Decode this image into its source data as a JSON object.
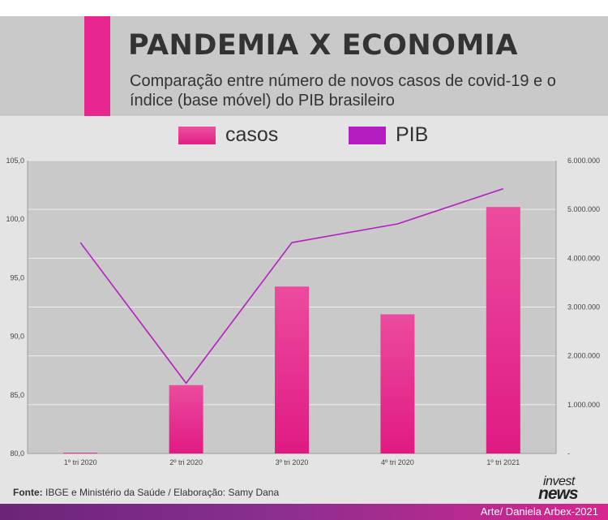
{
  "header": {
    "title": "PANDEMIA X ECONOMIA",
    "subtitle": "Comparação entre número de novos casos de covid-19 e o índice (base móvel) do PIB brasileiro"
  },
  "legend": {
    "casos": "casos",
    "pib": "PIB"
  },
  "colors": {
    "casos": "#e8268f",
    "pib": "#b51dc2",
    "accent": "#e8268f",
    "plot_background": "#c9c9c9"
  },
  "chart_data": {
    "type": "bar",
    "categories": [
      "1º tri 2020",
      "2º tri 2020",
      "3º tri 2020",
      "4º tri 2020",
      "1º tri 2021"
    ],
    "series": [
      {
        "name": "casos",
        "type": "bar",
        "axis": "right",
        "values": [
          12000,
          1400000,
          3420000,
          2850000,
          5050000
        ]
      },
      {
        "name": "PIB",
        "type": "line",
        "axis": "left",
        "values": [
          98.0,
          86.0,
          98.0,
          99.6,
          102.6
        ]
      }
    ],
    "left_axis": {
      "ylim": [
        80,
        105
      ],
      "ticks": [
        "80,0",
        "85,0",
        "90,0",
        "95,0",
        "100,0",
        "105,0"
      ]
    },
    "right_axis": {
      "ylim": [
        0,
        6000000
      ],
      "ticks": [
        "-",
        "1.000.000",
        "2.000.000",
        "3.000.000",
        "4.000.000",
        "5.000.000",
        "6.000.000"
      ]
    },
    "grid": true
  },
  "source": {
    "label": "Fonte:",
    "text": "IBGE e Ministério da Saúde / Elaboração: Samy Dana"
  },
  "brand": {
    "line1": "invest",
    "line2": "news"
  },
  "credit": "Arte/ Daniela Arbex-2021"
}
